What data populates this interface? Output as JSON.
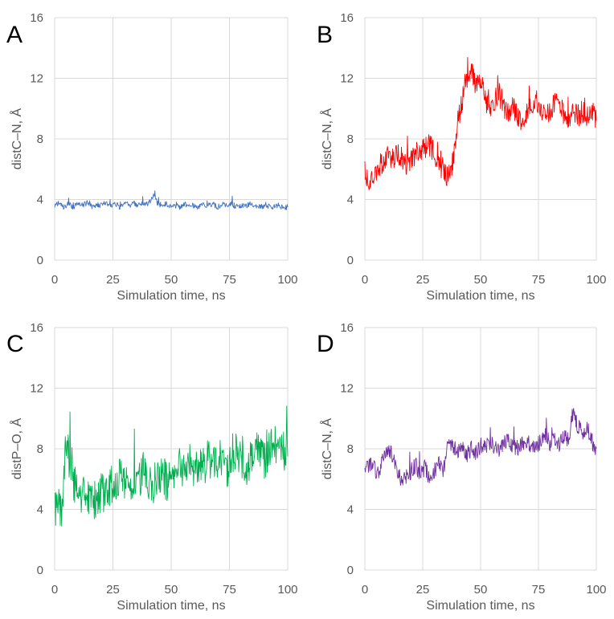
{
  "figure": {
    "name": "md-distance-panels"
  },
  "colors": {
    "grid": "#d9d9d9",
    "tick_text": "#595959",
    "panel_label": "#000000",
    "background": "#ffffff"
  },
  "chart_data": [
    {
      "id": "A",
      "panel_label": "A",
      "type": "line",
      "title": "",
      "xlabel": "Simulation time, ns",
      "ylabel": "distC–N, Å",
      "xlim": [
        0,
        100
      ],
      "ylim": [
        0,
        16
      ],
      "xticks": [
        "0",
        "25",
        "50",
        "75",
        "100"
      ],
      "yticks": [
        "0",
        "4",
        "8",
        "12",
        "16"
      ],
      "grid": true,
      "legend": "none",
      "series": [
        {
          "name": "distC–N",
          "color": "#4472c4",
          "x": [
            0,
            2,
            4,
            6,
            8,
            10,
            12,
            14,
            16,
            18,
            20,
            22,
            24,
            26,
            28,
            30,
            32,
            34,
            36,
            38,
            40,
            42,
            43,
            44,
            46,
            48,
            50,
            52,
            54,
            56,
            58,
            60,
            62,
            64,
            66,
            68,
            70,
            72,
            74,
            76,
            78,
            80,
            82,
            84,
            86,
            88,
            90,
            92,
            94,
            96,
            98,
            100
          ],
          "values": [
            3.6,
            3.8,
            3.5,
            3.7,
            3.5,
            3.7,
            3.6,
            3.8,
            3.5,
            3.7,
            3.6,
            3.8,
            3.6,
            3.7,
            3.5,
            3.8,
            3.6,
            3.7,
            3.6,
            3.8,
            3.7,
            4.1,
            4.4,
            3.8,
            3.6,
            3.7,
            3.5,
            3.6,
            3.5,
            3.7,
            3.6,
            3.6,
            3.5,
            3.7,
            3.6,
            3.7,
            3.5,
            3.7,
            3.6,
            3.7,
            3.5,
            3.6,
            3.6,
            3.7,
            3.5,
            3.6,
            3.5,
            3.6,
            3.5,
            3.6,
            3.5,
            3.5
          ]
        }
      ]
    },
    {
      "id": "B",
      "panel_label": "B",
      "type": "line",
      "title": "",
      "xlabel": "Simulation time, ns",
      "ylabel": "distC–N, Å",
      "xlim": [
        0,
        100
      ],
      "ylim": [
        0,
        16
      ],
      "xticks": [
        "0",
        "25",
        "50",
        "75",
        "100"
      ],
      "yticks": [
        "0",
        "4",
        "8",
        "12",
        "16"
      ],
      "grid": true,
      "legend": "none",
      "series": [
        {
          "name": "distC–N",
          "color": "#ff0000",
          "x": [
            0,
            2,
            4,
            6,
            8,
            10,
            12,
            14,
            16,
            18,
            20,
            22,
            24,
            26,
            28,
            30,
            32,
            34,
            36,
            38,
            40,
            42,
            44,
            46,
            48,
            50,
            52,
            54,
            56,
            58,
            60,
            62,
            64,
            66,
            68,
            70,
            72,
            74,
            76,
            78,
            80,
            82,
            84,
            86,
            88,
            90,
            92,
            94,
            96,
            98,
            100
          ],
          "values": [
            5.8,
            5.0,
            5.5,
            6.2,
            6.5,
            6.8,
            6.6,
            7.0,
            6.8,
            6.2,
            6.5,
            7.0,
            7.2,
            7.4,
            7.6,
            7.0,
            6.2,
            5.7,
            5.6,
            6.5,
            9.0,
            10.5,
            12.0,
            12.5,
            11.5,
            12.0,
            10.5,
            10.0,
            10.5,
            11.0,
            10.0,
            9.8,
            10.2,
            9.5,
            9.0,
            9.8,
            10.5,
            10.2,
            9.8,
            10.0,
            9.6,
            10.4,
            10.0,
            9.5,
            9.4,
            9.8,
            9.5,
            9.8,
            9.6,
            10.0,
            9.2
          ]
        }
      ]
    },
    {
      "id": "C",
      "panel_label": "C",
      "type": "line",
      "title": "",
      "xlabel": "Simulation time, ns",
      "ylabel": "distP–O, Å",
      "xlim": [
        0,
        100
      ],
      "ylim": [
        0,
        16
      ],
      "xticks": [
        "0",
        "25",
        "50",
        "75",
        "100"
      ],
      "yticks": [
        "0",
        "4",
        "8",
        "12",
        "16"
      ],
      "grid": true,
      "legend": "none",
      "series": [
        {
          "name": "distP–O",
          "color": "#00b050",
          "x": [
            0,
            1,
            2,
            3,
            4,
            5,
            6,
            8,
            10,
            12,
            14,
            16,
            18,
            20,
            22,
            24,
            26,
            28,
            30,
            32,
            34,
            36,
            38,
            40,
            42,
            44,
            46,
            48,
            50,
            52,
            54,
            56,
            58,
            60,
            62,
            64,
            66,
            68,
            70,
            72,
            74,
            76,
            78,
            80,
            82,
            84,
            86,
            88,
            90,
            92,
            94,
            96,
            98,
            100
          ],
          "values": [
            4.2,
            4.0,
            4.1,
            4.0,
            6.5,
            8.5,
            7.5,
            6.0,
            4.8,
            5.0,
            4.6,
            4.8,
            4.5,
            5.2,
            5.0,
            5.6,
            5.8,
            6.2,
            6.0,
            5.6,
            6.2,
            5.8,
            6.5,
            6.0,
            5.6,
            6.2,
            6.5,
            5.8,
            6.5,
            6.2,
            7.0,
            6.2,
            7.5,
            6.5,
            7.0,
            6.8,
            7.5,
            6.8,
            7.2,
            7.0,
            6.5,
            7.5,
            8.0,
            7.2,
            6.5,
            7.5,
            8.0,
            7.8,
            7.0,
            8.0,
            8.5,
            7.5,
            8.0,
            7.5
          ]
        }
      ]
    },
    {
      "id": "D",
      "panel_label": "D",
      "type": "line",
      "title": "",
      "xlabel": "Simulation time, ns",
      "ylabel": "distC–N, Å",
      "xlim": [
        0,
        100
      ],
      "ylim": [
        0,
        16
      ],
      "xticks": [
        "0",
        "25",
        "50",
        "75",
        "100"
      ],
      "yticks": [
        "0",
        "4",
        "8",
        "12",
        "16"
      ],
      "grid": true,
      "legend": "none",
      "series": [
        {
          "name": "distC–N",
          "color": "#7030a0",
          "x": [
            0,
            2,
            4,
            6,
            8,
            10,
            12,
            14,
            16,
            18,
            20,
            22,
            24,
            26,
            28,
            30,
            32,
            34,
            36,
            38,
            40,
            42,
            44,
            46,
            48,
            50,
            52,
            54,
            56,
            58,
            60,
            62,
            64,
            66,
            68,
            70,
            72,
            74,
            76,
            78,
            80,
            82,
            84,
            86,
            88,
            90,
            92,
            94,
            96,
            98,
            100
          ],
          "values": [
            6.5,
            7.0,
            6.8,
            6.2,
            7.5,
            8.0,
            7.6,
            6.4,
            6.0,
            6.2,
            6.5,
            7.0,
            6.2,
            6.8,
            6.0,
            6.5,
            7.0,
            6.5,
            8.5,
            8.2,
            7.8,
            8.0,
            7.6,
            8.0,
            7.8,
            8.2,
            8.0,
            8.4,
            8.2,
            8.0,
            8.5,
            8.6,
            8.2,
            8.0,
            8.4,
            8.5,
            8.2,
            8.0,
            8.6,
            8.8,
            8.4,
            8.5,
            8.2,
            8.8,
            8.6,
            10.5,
            9.5,
            9.0,
            9.5,
            8.5,
            8.0
          ]
        }
      ]
    }
  ]
}
